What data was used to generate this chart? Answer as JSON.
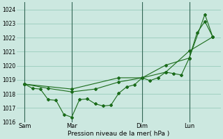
{
  "background_color": "#cce8e0",
  "grid_color": "#99ccbb",
  "line_color": "#1a6b1a",
  "xlabel": "Pression niveau de la mer( hPa )",
  "ylim": [
    1016,
    1024.5
  ],
  "xlim": [
    0,
    13
  ],
  "yticks": [
    1016,
    1017,
    1018,
    1019,
    1020,
    1021,
    1022,
    1023,
    1024
  ],
  "xtick_labels": [
    "Sam",
    "Mar",
    "Dim",
    "Lun"
  ],
  "xtick_positions": [
    0.5,
    3.5,
    8.0,
    11.0
  ],
  "vline_positions": [
    0.5,
    3.5,
    8.0,
    11.0
  ],
  "series1_x": [
    0.5,
    1.0,
    1.5,
    2.0,
    2.5,
    3.0,
    3.5,
    4.0,
    4.5,
    5.0,
    5.5,
    6.0,
    6.5,
    7.0,
    7.5,
    8.0,
    8.5,
    9.0,
    9.5,
    10.0,
    10.5,
    11.0,
    11.5,
    12.0,
    12.5
  ],
  "series1_y": [
    1018.7,
    1018.4,
    1018.35,
    1017.6,
    1017.55,
    1016.55,
    1016.35,
    1017.6,
    1017.65,
    1017.3,
    1017.15,
    1017.2,
    1018.05,
    1018.5,
    1018.65,
    1019.15,
    1018.95,
    1019.15,
    1019.55,
    1019.45,
    1019.35,
    1020.55,
    1022.35,
    1023.15,
    1022.05
  ],
  "series2_x": [
    0.5,
    2.0,
    3.5,
    5.0,
    6.5,
    8.0,
    9.5,
    11.0,
    12.5
  ],
  "series2_y": [
    1018.7,
    1018.4,
    1018.15,
    1018.35,
    1018.85,
    1019.15,
    1019.55,
    1021.05,
    1022.05
  ],
  "series3_x": [
    0.5,
    3.5,
    6.5,
    8.0,
    9.5,
    11.0,
    12.0,
    12.5
  ],
  "series3_y": [
    1018.7,
    1018.35,
    1019.15,
    1019.15,
    1020.05,
    1020.55,
    1023.65,
    1022.05
  ]
}
